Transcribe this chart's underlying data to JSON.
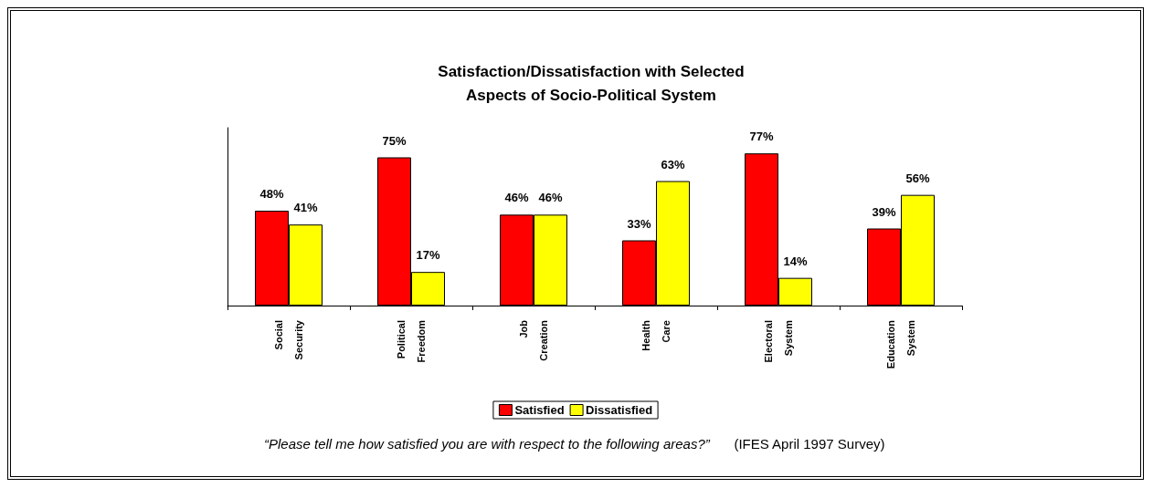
{
  "chart_data": {
    "type": "bar",
    "title": "Satisfaction/Dissatisfaction with Selected\nAspects of Socio-Political System",
    "categories": [
      "Social\nSecurity",
      "Political\nFreedom",
      "Job\nCreation",
      "Health\nCare",
      "Electoral\nSystem",
      "Education\nSystem"
    ],
    "series": [
      {
        "name": "Satisfied",
        "color": "#ff0000",
        "values": [
          48,
          75,
          46,
          33,
          77,
          39
        ],
        "value_labels": [
          "48%",
          "75%",
          "46%",
          "33%",
          "77%",
          "39%"
        ]
      },
      {
        "name": "Dissatisfied",
        "color": "#ffff00",
        "values": [
          41,
          17,
          46,
          63,
          14,
          56
        ],
        "value_labels": [
          "41%",
          "17%",
          "46%",
          "63%",
          "14%",
          "56%"
        ]
      }
    ],
    "ylim": [
      0,
      90
    ],
    "relative": false,
    "legend": "bottom",
    "grid": false,
    "annotations": [
      "“Please tell me how satisfied you are with respect to the following areas?”",
      "(IFES April 1997 Survey)"
    ]
  }
}
